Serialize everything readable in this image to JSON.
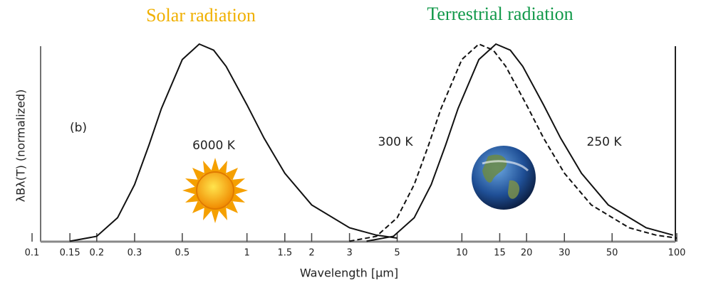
{
  "chart_data": {
    "type": "line",
    "annotations": [
      "Solar radiation",
      "Terrestrial radiation",
      "(b)"
    ],
    "xlabel": "Wavelength [µm]",
    "ylabel": "λBλ(T) (normalized)",
    "xscale": "log",
    "xlim": [
      0.1,
      100
    ],
    "ylim": [
      0,
      1
    ],
    "xticks": [
      0.1,
      0.15,
      0.2,
      0.3,
      0.5,
      1,
      1.5,
      2,
      3,
      5,
      10,
      15,
      20,
      30,
      50,
      100
    ],
    "series": [
      {
        "name": "6000 K",
        "color": "#111111",
        "dashed": false,
        "x": [
          0.15,
          0.2,
          0.25,
          0.3,
          0.35,
          0.4,
          0.5,
          0.6,
          0.7,
          0.8,
          1,
          1.2,
          1.5,
          2,
          3,
          4,
          5
        ],
        "values": [
          0.002,
          0.027,
          0.121,
          0.289,
          0.489,
          0.674,
          0.922,
          1.0,
          0.969,
          0.887,
          0.692,
          0.524,
          0.346,
          0.186,
          0.07,
          0.033,
          0.018
        ]
      },
      {
        "name": "300 K",
        "color": "#111111",
        "dashed": true,
        "x": [
          3,
          4,
          5,
          6,
          7,
          8,
          10,
          12,
          14,
          16,
          20,
          24,
          30,
          40,
          60,
          80,
          100
        ],
        "values": [
          0.002,
          0.027,
          0.121,
          0.289,
          0.489,
          0.674,
          0.922,
          1.0,
          0.969,
          0.887,
          0.692,
          0.524,
          0.346,
          0.186,
          0.07,
          0.033,
          0.018
        ]
      },
      {
        "name": "250 K",
        "color": "#111111",
        "dashed": false,
        "x": [
          3.6,
          4.8,
          6,
          7.2,
          8.4,
          9.6,
          12,
          14.4,
          16.8,
          19.2,
          24,
          28.8,
          36,
          48,
          72,
          96
        ],
        "values": [
          0.002,
          0.027,
          0.121,
          0.289,
          0.489,
          0.674,
          0.922,
          1.0,
          0.969,
          0.887,
          0.692,
          0.524,
          0.346,
          0.186,
          0.07,
          0.033
        ]
      }
    ]
  }
}
